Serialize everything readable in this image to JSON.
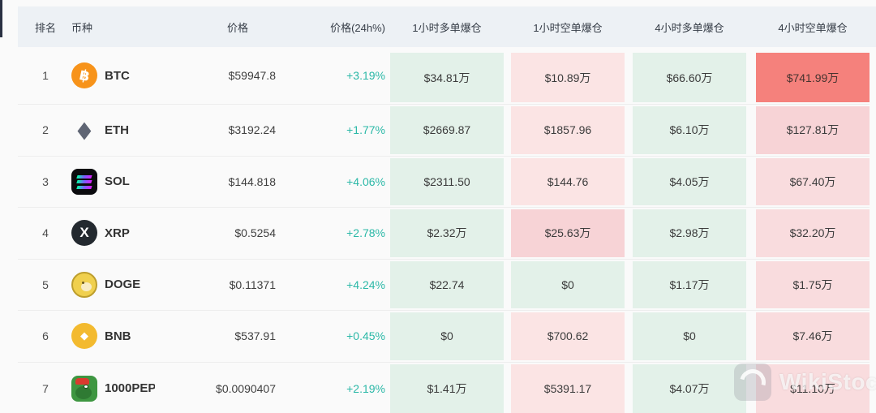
{
  "watermark": {
    "text": "WikiStock"
  },
  "colors": {
    "accent_teal": "#2bb8a7",
    "header_bg": "#edf1f5",
    "green_cell": "#e3f1e9",
    "pink_cell": "#fbe4e4",
    "pink_cell_medium": "#f9dcde",
    "pink_cell_deep": "#f7d3d6",
    "red_cell": "#f5817c"
  },
  "table": {
    "headers": {
      "rank": "排名",
      "coin": "币种",
      "price": "价格",
      "change": "价格(24h%)",
      "liq_1h_long": "1小时多单爆仓",
      "liq_1h_short": "1小时空单爆仓",
      "liq_4h_long": "4小时多单爆仓",
      "liq_4h_short": "4小时空单爆仓"
    },
    "rows": [
      {
        "rank": "1",
        "coin": "BTC",
        "icon": "btc",
        "price": "$59947.8",
        "change": "+3.19%",
        "liq": [
          {
            "v": "$34.81万",
            "c": "green"
          },
          {
            "v": "$10.89万",
            "c": "pink"
          },
          {
            "v": "$66.60万",
            "c": "green"
          },
          {
            "v": "$741.99万",
            "c": "red"
          }
        ]
      },
      {
        "rank": "2",
        "coin": "ETH",
        "icon": "eth",
        "price": "$3192.24",
        "change": "+1.77%",
        "liq": [
          {
            "v": "$2669.87",
            "c": "green"
          },
          {
            "v": "$1857.96",
            "c": "pink"
          },
          {
            "v": "$6.10万",
            "c": "green"
          },
          {
            "v": "$127.81万",
            "c": "pink3"
          }
        ]
      },
      {
        "rank": "3",
        "coin": "SOL",
        "icon": "sol",
        "price": "$144.818",
        "change": "+4.06%",
        "liq": [
          {
            "v": "$2311.50",
            "c": "green"
          },
          {
            "v": "$144.76",
            "c": "pink"
          },
          {
            "v": "$4.05万",
            "c": "green"
          },
          {
            "v": "$67.40万",
            "c": "pink2"
          }
        ]
      },
      {
        "rank": "4",
        "coin": "XRP",
        "icon": "xrp",
        "price": "$0.5254",
        "change": "+2.78%",
        "liq": [
          {
            "v": "$2.32万",
            "c": "green"
          },
          {
            "v": "$25.63万",
            "c": "pink3"
          },
          {
            "v": "$2.98万",
            "c": "green"
          },
          {
            "v": "$32.20万",
            "c": "pink2"
          }
        ]
      },
      {
        "rank": "5",
        "coin": "DOGE",
        "icon": "doge",
        "price": "$0.11371",
        "change": "+4.24%",
        "liq": [
          {
            "v": "$22.74",
            "c": "green"
          },
          {
            "v": "$0",
            "c": "green"
          },
          {
            "v": "$1.17万",
            "c": "green"
          },
          {
            "v": "$1.75万",
            "c": "pink2"
          }
        ]
      },
      {
        "rank": "6",
        "coin": "BNB",
        "icon": "bnb",
        "price": "$537.91",
        "change": "+0.45%",
        "liq": [
          {
            "v": "$0",
            "c": "green"
          },
          {
            "v": "$700.62",
            "c": "pink"
          },
          {
            "v": "$0",
            "c": "green"
          },
          {
            "v": "$7.46万",
            "c": "pink2"
          }
        ]
      },
      {
        "rank": "7",
        "coin": "1000PEP",
        "icon": "pepe",
        "price": "$0.0090407",
        "change": "+2.19%",
        "liq": [
          {
            "v": "$1.41万",
            "c": "green"
          },
          {
            "v": "$5391.17",
            "c": "pink"
          },
          {
            "v": "$4.07万",
            "c": "green"
          },
          {
            "v": "$11.10万",
            "c": "pink2"
          }
        ]
      }
    ]
  }
}
